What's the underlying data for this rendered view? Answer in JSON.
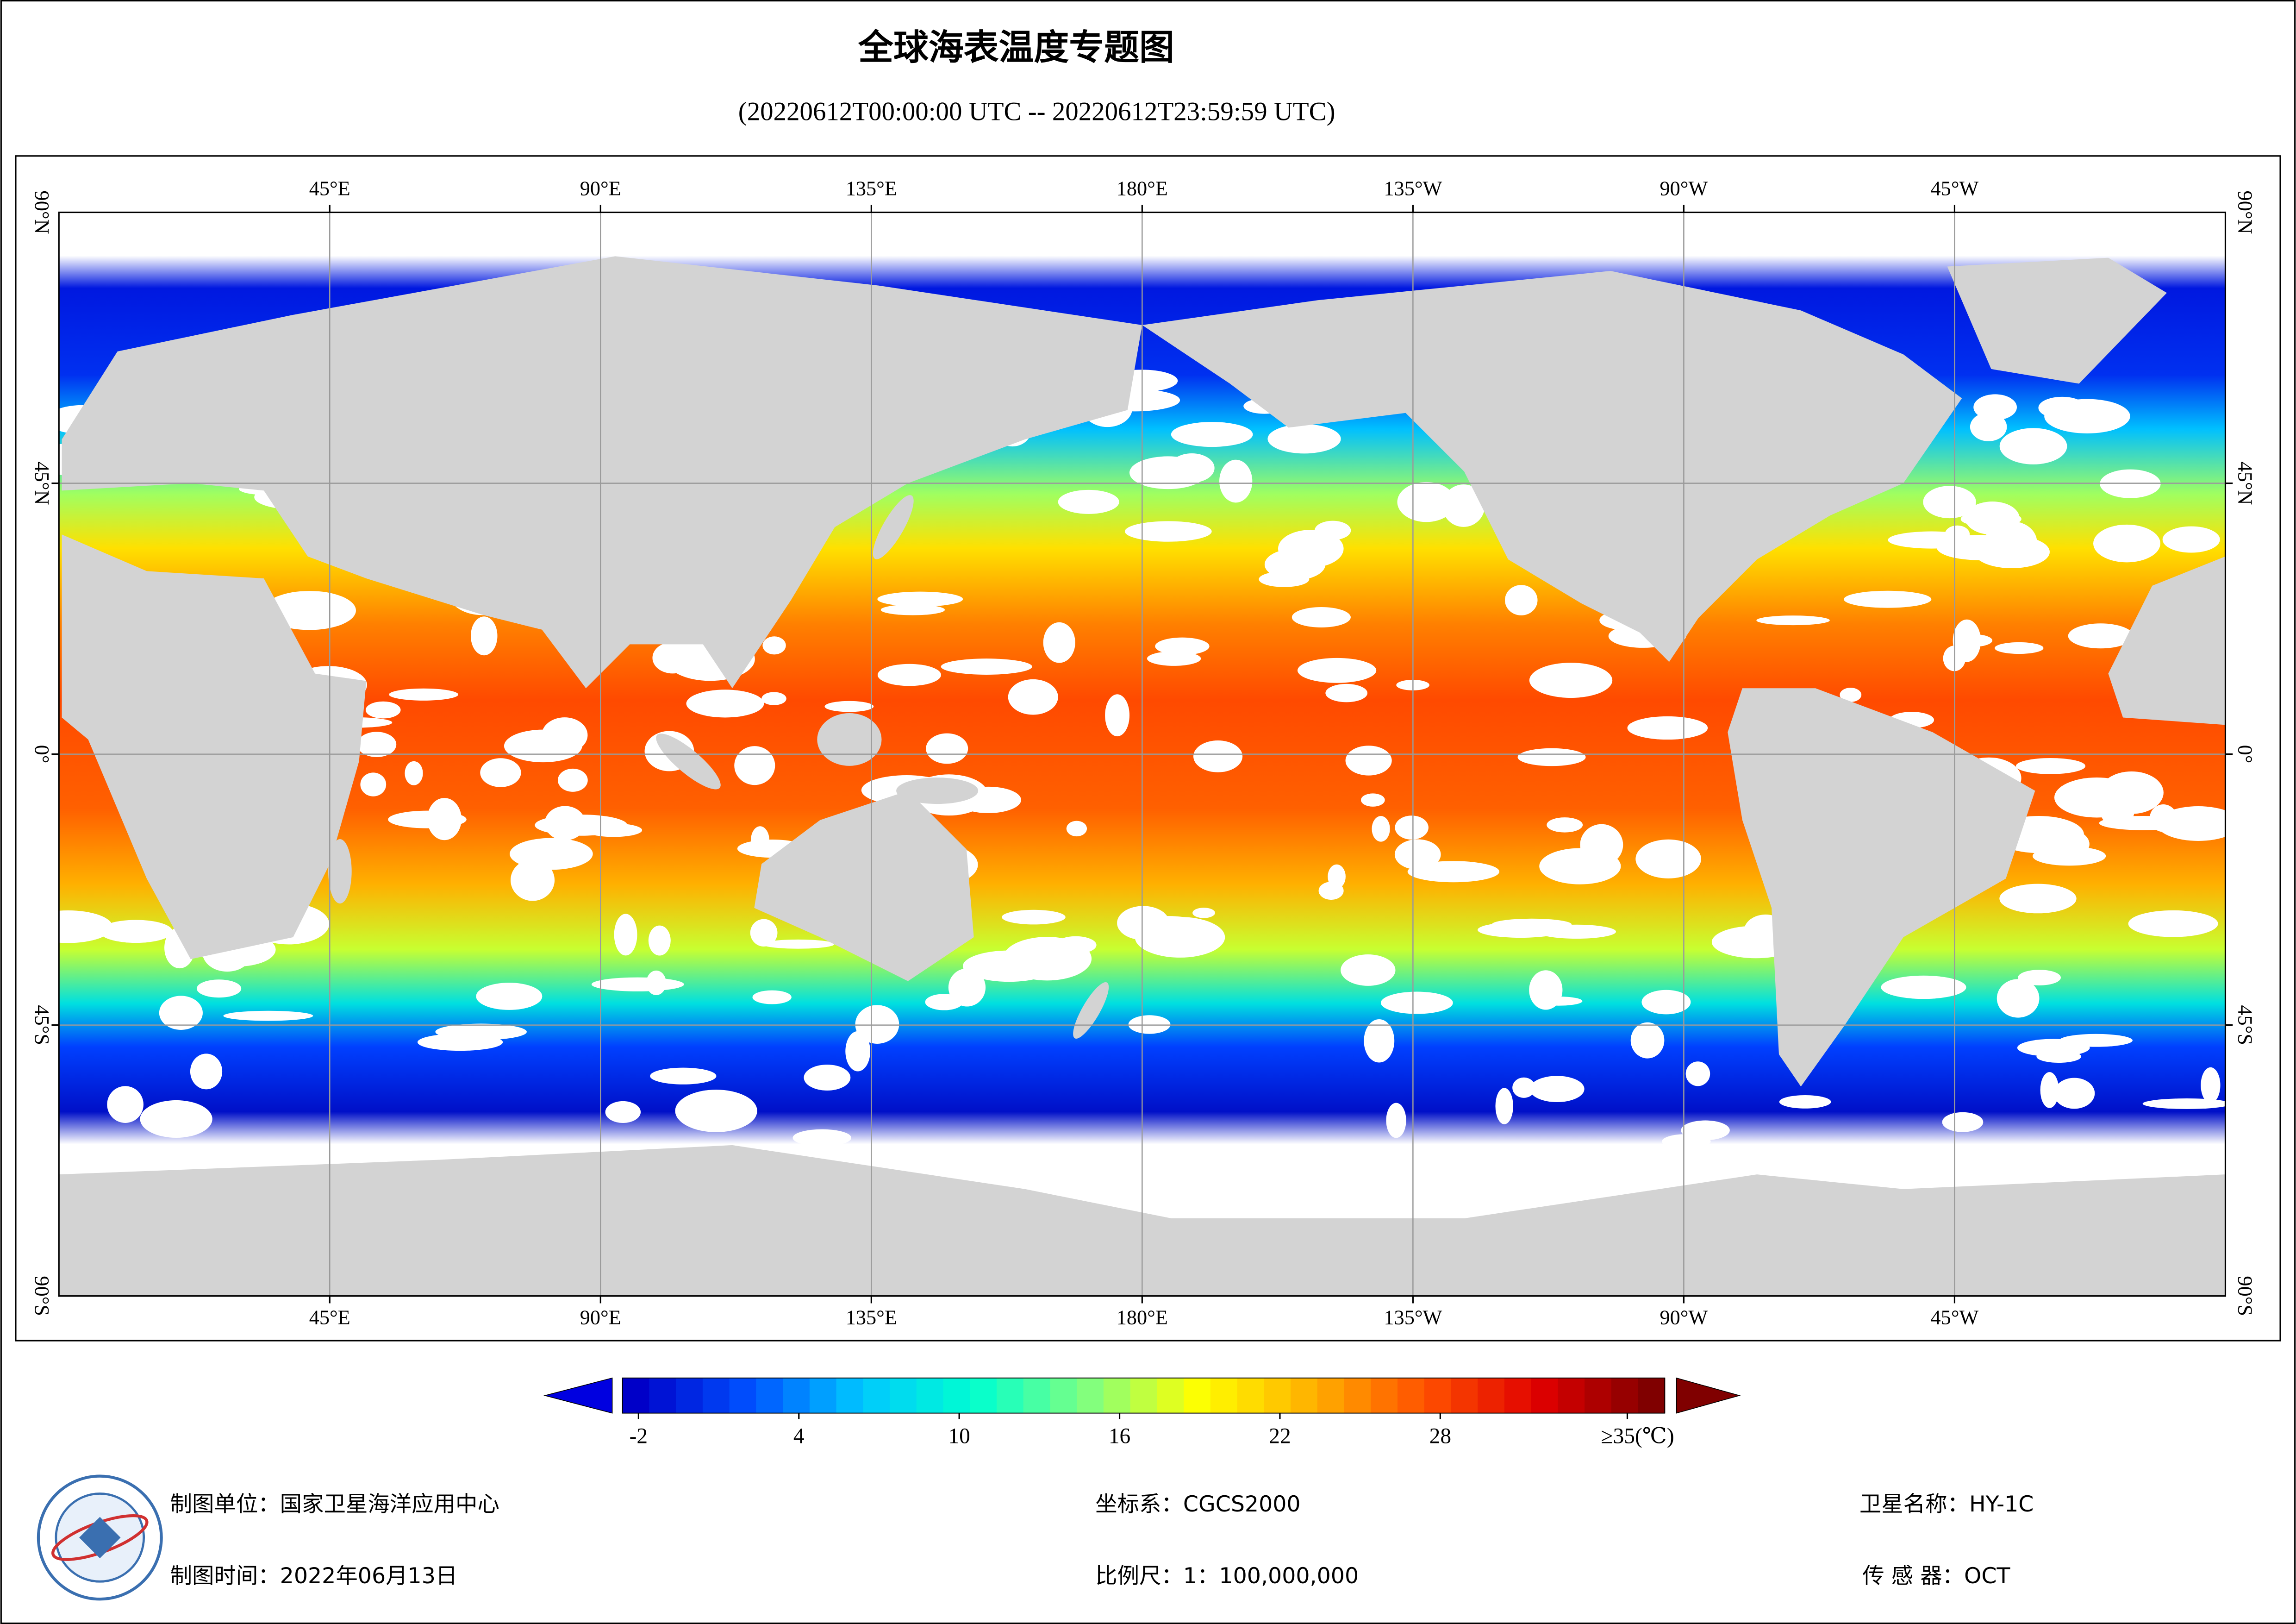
{
  "title": "全球海表温度专题图",
  "subtitle": "(20220612T00:00:00 UTC -- 20220612T23:59:59 UTC)",
  "map": {
    "lon_labels": [
      "45°E",
      "90°E",
      "135°E",
      "180°E",
      "135°W",
      "90°W",
      "45°W"
    ],
    "lat_labels": [
      "90°N",
      "45°N",
      "0°",
      "45°S",
      "90°S"
    ]
  },
  "colorbar": {
    "lim": [
      -2.6,
      36.4
    ],
    "ticks": [
      -2,
      4,
      10,
      16,
      22,
      28,
      {
        "value": 35,
        "label": "≥35(℃)"
      }
    ],
    "colors": [
      "#0000c8",
      "#0050ff",
      "#00c8ff",
      "#00ffd0",
      "#80ff80",
      "#ffff00",
      "#ffb000",
      "#ff5000",
      "#e00000",
      "#800000"
    ]
  },
  "footer": {
    "unit": "制图单位：国家卫星海洋应用中心",
    "time": "制图时间：2022年06月13日",
    "crs": "坐标系：CGCS2000",
    "scale": "比例尺：1：100,000,000",
    "satellite": "卫星名称：HY-1C",
    "sensor": "传 感 器：OCT"
  }
}
